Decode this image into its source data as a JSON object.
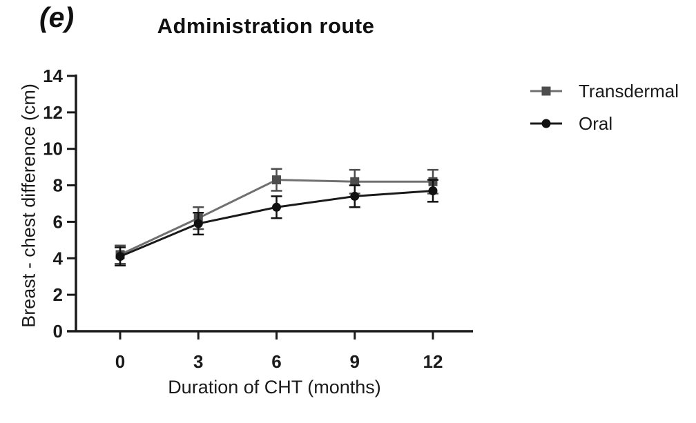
{
  "panel_label": "(e)",
  "chart_data": {
    "type": "line",
    "title": "Administration route",
    "xlabel": "Duration of CHT (months)",
    "ylabel": "Breast - chest difference (cm)",
    "x": [
      0,
      3,
      6,
      9,
      12
    ],
    "xticks": [
      "0",
      "3",
      "6",
      "9",
      "12"
    ],
    "yticks": [
      "0",
      "2",
      "4",
      "6",
      "8",
      "10",
      "12",
      "14"
    ],
    "xlim": [
      0,
      12
    ],
    "ylim": [
      0,
      14
    ],
    "grid": false,
    "legend_position": "right",
    "error_bars": true,
    "axis_color": "#1a1a1a",
    "series": [
      {
        "name": "Transdermal",
        "marker": "square",
        "color": "#4d4d4d",
        "line_color": "#707070",
        "values": [
          4.2,
          6.2,
          8.3,
          8.2,
          8.2
        ],
        "errors": [
          0.5,
          0.6,
          0.6,
          0.65,
          0.65
        ]
      },
      {
        "name": "Oral",
        "marker": "circle",
        "color": "#111111",
        "line_color": "#1a1a1a",
        "values": [
          4.1,
          5.9,
          6.8,
          7.4,
          7.7
        ],
        "errors": [
          0.5,
          0.6,
          0.6,
          0.6,
          0.6
        ]
      }
    ]
  }
}
